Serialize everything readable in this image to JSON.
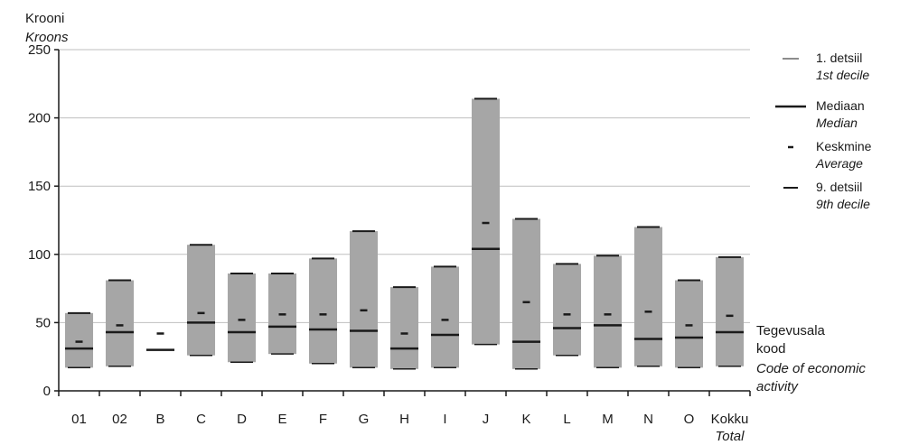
{
  "chart_data": {
    "type": "box",
    "y_axis_title": "Krooni",
    "y_axis_title_en": "Kroons",
    "x_axis_title": [
      "Tegevusala",
      "kood"
    ],
    "x_axis_title_en": [
      "Code of economic",
      "activity"
    ],
    "ylim": [
      0,
      250
    ],
    "y_ticks": [
      0,
      50,
      100,
      150,
      200,
      250
    ],
    "grid": true,
    "legend_position": "right",
    "colors": {
      "box": "#a6a6a6",
      "marker": "#1a1a1a",
      "grid": "#bfbfbf"
    },
    "legend": [
      {
        "label": "1. detsiil",
        "label_en": "1st decile",
        "marker": "thin-line"
      },
      {
        "label": "Mediaan",
        "label_en": "Median",
        "marker": "thick-line"
      },
      {
        "label": "Keskmine",
        "label_en": "Average",
        "marker": "short-dash"
      },
      {
        "label": "9. detsiil",
        "label_en": "9th decile",
        "marker": "medium-line"
      }
    ],
    "categories": [
      {
        "code": "01",
        "p10": 17,
        "median": 31,
        "mean": 36,
        "p90": 57
      },
      {
        "code": "02",
        "p10": 18,
        "median": 43,
        "mean": 48,
        "p90": 81
      },
      {
        "code": "B",
        "median": 30,
        "mean": 42
      },
      {
        "code": "C",
        "p10": 26,
        "median": 50,
        "mean": 57,
        "p90": 107
      },
      {
        "code": "D",
        "p10": 21,
        "median": 43,
        "mean": 52,
        "p90": 86
      },
      {
        "code": "E",
        "p10": 27,
        "median": 47,
        "mean": 56,
        "p90": 86
      },
      {
        "code": "F",
        "p10": 20,
        "median": 45,
        "mean": 56,
        "p90": 97
      },
      {
        "code": "G",
        "p10": 17,
        "median": 44,
        "mean": 59,
        "p90": 117
      },
      {
        "code": "H",
        "p10": 16,
        "median": 31,
        "mean": 42,
        "p90": 76
      },
      {
        "code": "I",
        "p10": 17,
        "median": 41,
        "mean": 52,
        "p90": 91
      },
      {
        "code": "J",
        "p10": 34,
        "median": 104,
        "mean": 123,
        "p90": 214
      },
      {
        "code": "K",
        "p10": 16,
        "median": 36,
        "mean": 65,
        "p90": 126
      },
      {
        "code": "L",
        "p10": 26,
        "median": 46,
        "mean": 56,
        "p90": 93
      },
      {
        "code": "M",
        "p10": 17,
        "median": 48,
        "mean": 56,
        "p90": 99
      },
      {
        "code": "N",
        "p10": 18,
        "median": 38,
        "mean": 58,
        "p90": 120
      },
      {
        "code": "O",
        "p10": 17,
        "median": 39,
        "mean": 48,
        "p90": 81
      },
      {
        "code": "Kokku",
        "code_en": "Total",
        "p10": 18,
        "median": 43,
        "mean": 55,
        "p90": 98
      }
    ]
  }
}
